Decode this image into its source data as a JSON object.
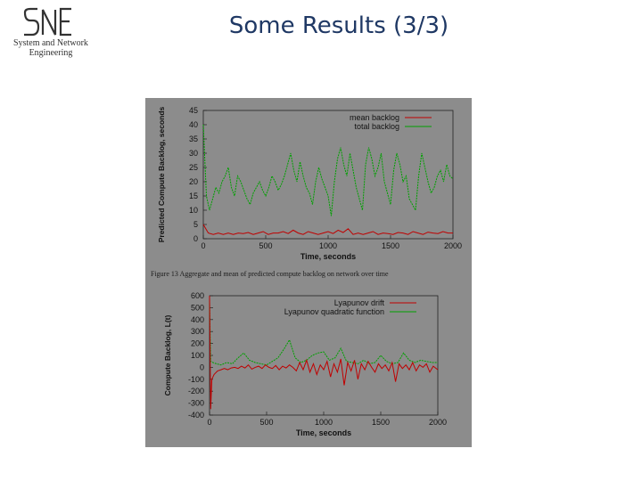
{
  "logo": {
    "mark": "SNE",
    "line1": "System and Network",
    "line2": "Engineering"
  },
  "slide": {
    "title": "Some Results (3/3)"
  },
  "figure": {
    "caption": "Figure 13 Aggregate and mean of predicted compute backlog on network over time"
  },
  "colors": {
    "title": "#1f3864",
    "figure_bg": "#8c8c8c",
    "red_series": "#c00000",
    "green_series": "#00a000"
  },
  "chart_data": [
    {
      "type": "line",
      "title": "",
      "xlabel": "Time, seconds",
      "ylabel": "Predicted Compute Backlog, seconds",
      "xlim": [
        0,
        2000
      ],
      "ylim": [
        0,
        45
      ],
      "xticks": [
        0,
        500,
        1000,
        1500,
        2000
      ],
      "yticks": [
        0,
        5,
        10,
        15,
        20,
        25,
        30,
        35,
        40,
        45
      ],
      "legend_position": "top-right",
      "grid": false,
      "series": [
        {
          "name": "mean backlog",
          "color": "#c00000",
          "x": [
            0,
            40,
            80,
            120,
            160,
            200,
            240,
            280,
            320,
            360,
            400,
            440,
            480,
            520,
            560,
            600,
            640,
            680,
            720,
            760,
            800,
            840,
            880,
            920,
            960,
            1000,
            1040,
            1080,
            1120,
            1160,
            1200,
            1240,
            1280,
            1320,
            1360,
            1400,
            1440,
            1480,
            1520,
            1560,
            1600,
            1640,
            1680,
            1720,
            1760,
            1800,
            1840,
            1880,
            1920,
            1960,
            2000
          ],
          "y": [
            5,
            2,
            1.5,
            2,
            1.5,
            2,
            1.5,
            2,
            1.8,
            2.2,
            1.5,
            2,
            2.5,
            1.5,
            2,
            2,
            2.5,
            1.8,
            3,
            2,
            1.5,
            2.5,
            2,
            1.5,
            2,
            2.5,
            1.8,
            3,
            2.2,
            3.5,
            1.5,
            2,
            1.5,
            2,
            2.5,
            1.5,
            2,
            1.8,
            1.5,
            2.2,
            2,
            1.5,
            2.5,
            2,
            1.5,
            2.3,
            2,
            1.8,
            2.5,
            2,
            2
          ]
        },
        {
          "name": "total backlog",
          "color": "#00a000",
          "x": [
            0,
            25,
            50,
            75,
            100,
            125,
            150,
            175,
            200,
            225,
            250,
            275,
            300,
            325,
            350,
            375,
            400,
            425,
            450,
            475,
            500,
            525,
            550,
            575,
            600,
            625,
            650,
            675,
            700,
            725,
            750,
            775,
            800,
            825,
            850,
            875,
            900,
            925,
            950,
            975,
            1000,
            1025,
            1050,
            1075,
            1100,
            1125,
            1150,
            1175,
            1200,
            1225,
            1250,
            1275,
            1300,
            1325,
            1350,
            1375,
            1400,
            1425,
            1450,
            1475,
            1500,
            1525,
            1550,
            1575,
            1600,
            1625,
            1650,
            1675,
            1700,
            1725,
            1750,
            1775,
            1800,
            1825,
            1850,
            1875,
            1900,
            1925,
            1950,
            1975,
            2000
          ],
          "y": [
            40,
            15,
            10,
            14,
            18,
            16,
            20,
            22,
            25,
            18,
            15,
            22,
            20,
            17,
            14,
            12,
            16,
            18,
            20,
            17,
            15,
            18,
            22,
            20,
            17,
            19,
            22,
            26,
            30,
            24,
            20,
            27,
            22,
            18,
            16,
            12,
            20,
            25,
            21,
            18,
            15,
            8,
            20,
            28,
            32,
            26,
            22,
            30,
            24,
            18,
            14,
            10,
            26,
            32,
            28,
            22,
            25,
            30,
            20,
            16,
            12,
            24,
            30,
            26,
            20,
            22,
            14,
            12,
            10,
            22,
            30,
            25,
            20,
            16,
            18,
            22,
            24,
            20,
            26,
            22,
            21
          ]
        }
      ]
    },
    {
      "type": "line",
      "title": "",
      "xlabel": "Time, seconds",
      "ylabel": "Compute Backlog, L(t)",
      "xlim": [
        0,
        2000
      ],
      "ylim": [
        -400,
        600
      ],
      "xticks": [
        0,
        500,
        1000,
        1500,
        2000
      ],
      "yticks": [
        -400,
        -300,
        -200,
        -100,
        0,
        100,
        200,
        300,
        400,
        500,
        600
      ],
      "legend_position": "top-right",
      "grid": false,
      "series": [
        {
          "name": "Lyapunov drift",
          "color": "#c00000",
          "x": [
            0,
            10,
            20,
            40,
            70,
            100,
            130,
            160,
            190,
            220,
            250,
            280,
            310,
            340,
            370,
            400,
            430,
            460,
            490,
            520,
            550,
            580,
            610,
            640,
            670,
            700,
            730,
            760,
            790,
            820,
            850,
            880,
            910,
            940,
            970,
            1000,
            1030,
            1060,
            1090,
            1120,
            1150,
            1180,
            1210,
            1240,
            1270,
            1300,
            1330,
            1360,
            1390,
            1420,
            1450,
            1480,
            1510,
            1540,
            1570,
            1600,
            1630,
            1660,
            1690,
            1720,
            1750,
            1780,
            1810,
            1840,
            1870,
            1900,
            1930,
            1960,
            2000
          ],
          "y": [
            600,
            -350,
            -100,
            -60,
            -30,
            -20,
            -10,
            -20,
            -5,
            0,
            -10,
            10,
            -5,
            20,
            -15,
            0,
            10,
            -10,
            20,
            0,
            -10,
            15,
            -20,
            10,
            -5,
            20,
            0,
            -30,
            40,
            -20,
            60,
            -40,
            30,
            -60,
            20,
            -20,
            50,
            -80,
            30,
            -40,
            70,
            -150,
            40,
            -30,
            60,
            -100,
            30,
            -20,
            50,
            0,
            -40,
            30,
            -10,
            20,
            -30,
            40,
            -120,
            30,
            -10,
            20,
            -20,
            40,
            -30,
            20,
            0,
            30,
            -40,
            10,
            -20
          ]
        },
        {
          "name": "Lyapunov quadratic function",
          "color": "#00a000",
          "x": [
            0,
            10,
            30,
            60,
            100,
            150,
            200,
            250,
            300,
            350,
            400,
            450,
            500,
            550,
            600,
            650,
            700,
            750,
            800,
            850,
            900,
            950,
            1000,
            1050,
            1100,
            1150,
            1200,
            1250,
            1300,
            1350,
            1400,
            1450,
            1500,
            1550,
            1600,
            1650,
            1700,
            1750,
            1800,
            1850,
            1900,
            1950,
            2000
          ],
          "y": [
            550,
            50,
            40,
            30,
            20,
            40,
            30,
            80,
            120,
            60,
            40,
            30,
            20,
            50,
            80,
            150,
            230,
            80,
            40,
            60,
            100,
            120,
            130,
            60,
            80,
            160,
            50,
            40,
            30,
            60,
            30,
            40,
            100,
            50,
            30,
            40,
            120,
            60,
            40,
            60,
            50,
            40,
            40
          ]
        }
      ]
    }
  ]
}
